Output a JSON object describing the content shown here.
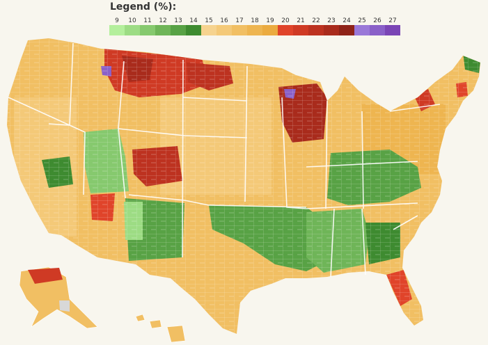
{
  "legend": {
    "title": "Legend (%):",
    "items": [
      {
        "label": "9",
        "color": "#b4ef9c"
      },
      {
        "label": "10",
        "color": "#9ddc84"
      },
      {
        "label": "11",
        "color": "#86c96e"
      },
      {
        "label": "12",
        "color": "#6fb558"
      },
      {
        "label": "13",
        "color": "#58a245"
      },
      {
        "label": "14",
        "color": "#3e8b30"
      },
      {
        "label": "15",
        "color": "#f6d38f"
      },
      {
        "label": "16",
        "color": "#f4c978"
      },
      {
        "label": "17",
        "color": "#f1bf63"
      },
      {
        "label": "18",
        "color": "#eeb550"
      },
      {
        "label": "19",
        "color": "#ebab40"
      },
      {
        "label": "20",
        "color": "#e0442a"
      },
      {
        "label": "21",
        "color": "#cf3a24"
      },
      {
        "label": "22",
        "color": "#bd3220"
      },
      {
        "label": "23",
        "color": "#a92b1c"
      },
      {
        "label": "24",
        "color": "#8f2318"
      },
      {
        "label": "25",
        "color": "#9a78d8"
      },
      {
        "label": "26",
        "color": "#8a60c8"
      },
      {
        "label": "27",
        "color": "#7a45b5"
      }
    ]
  },
  "colors": {
    "background": "#f8f6ee",
    "border": "#ffffff",
    "no_data": "#d8d8d8"
  }
}
